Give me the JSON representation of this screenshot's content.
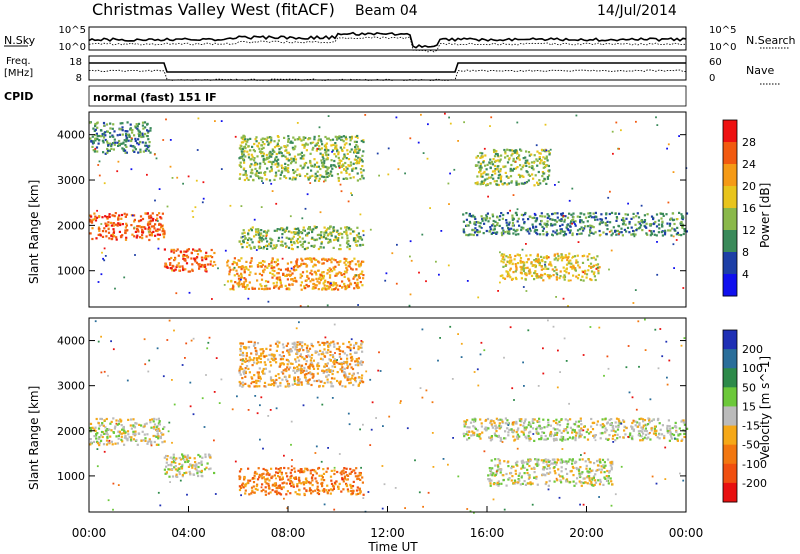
{
  "header": {
    "station": "Christmas Valley West (fitACF)",
    "beam": "Beam 04",
    "date": "14/Jul/2014"
  },
  "top_panels": {
    "nsky_label": "N.Sky",
    "nsearch_label": "N.Search",
    "nsky_ticks": [
      "10^5",
      "10^0"
    ],
    "nsearch_ticks": [
      "10^5",
      "10^0"
    ],
    "freq_label_1": "Freq.",
    "freq_label_2": "[MHz]",
    "freq_ticks": [
      "18",
      "8"
    ],
    "nave_label": "Nave",
    "nave_ticks": [
      "60",
      "0"
    ],
    "cpid_label": "CPID",
    "cpid_value": "normal (fast) 151 IF"
  },
  "chart_data": [
    {
      "type": "heatmap",
      "title": "",
      "ylabel": "Slant Range [km]",
      "xlabel": "",
      "ylim": [
        200,
        4500
      ],
      "yticks": [
        "4000",
        "3000",
        "2000",
        "1000"
      ],
      "colorbar": {
        "label": "Power [dB]",
        "ticks": [
          "28",
          "24",
          "20",
          "16",
          "12",
          "8",
          "4"
        ],
        "colors": [
          "#ee1111",
          "#f25a10",
          "#f59a16",
          "#e8c41c",
          "#8ab84a",
          "#3a8a5a",
          "#1d3fa6",
          "#1010ee"
        ]
      },
      "regions": [
        {
          "t0": 0.0,
          "t1": 3.0,
          "r0": 1700,
          "r1": 2300,
          "level": 24
        },
        {
          "t0": 0.0,
          "t1": 2.5,
          "r0": 3600,
          "r1": 4300,
          "level": 10
        },
        {
          "t0": 3.0,
          "t1": 5.0,
          "r0": 1000,
          "r1": 1500,
          "level": 26
        },
        {
          "t0": 5.5,
          "t1": 11.0,
          "r0": 600,
          "r1": 1300,
          "level": 20
        },
        {
          "t0": 6.0,
          "t1": 11.0,
          "r0": 1500,
          "r1": 2000,
          "level": 14
        },
        {
          "t0": 6.0,
          "t1": 11.0,
          "r0": 3000,
          "r1": 4000,
          "level": 12
        },
        {
          "t0": 15.5,
          "t1": 18.5,
          "r0": 2900,
          "r1": 3700,
          "level": 12
        },
        {
          "t0": 16.5,
          "t1": 20.5,
          "r0": 800,
          "r1": 1400,
          "level": 16
        },
        {
          "t0": 15.0,
          "t1": 24.0,
          "r0": 1800,
          "r1": 2300,
          "level": 8
        }
      ]
    },
    {
      "type": "heatmap",
      "title": "",
      "ylabel": "Slant Range [km]",
      "xlabel": "Time UT",
      "ylim": [
        200,
        4500
      ],
      "yticks": [
        "4000",
        "3000",
        "2000",
        "1000"
      ],
      "xticks": [
        "00:00",
        "04:00",
        "08:00",
        "12:00",
        "16:00",
        "20:00",
        "00:00"
      ],
      "colorbar": {
        "label": "Velocity [m s^-1]",
        "ticks": [
          "200",
          "100",
          "50",
          "15",
          "-15",
          "-50",
          "-100",
          "-200"
        ],
        "colors": [
          "#1f30b5",
          "#2a6e9a",
          "#2d8a4a",
          "#6cc83a",
          "#bbbbbb",
          "#f5a818",
          "#f27710",
          "#f04f10",
          "#e81010"
        ]
      },
      "regions": [
        {
          "t0": 0.0,
          "t1": 3.0,
          "r0": 1700,
          "r1": 2300,
          "velocity": 0
        },
        {
          "t0": 3.0,
          "t1": 5.0,
          "r0": 1000,
          "r1": 1500,
          "velocity": 0
        },
        {
          "t0": 6.0,
          "t1": 11.0,
          "r0": 600,
          "r1": 1200,
          "velocity": -60
        },
        {
          "t0": 6.0,
          "t1": 11.0,
          "r0": 3000,
          "r1": 4000,
          "velocity": -40
        },
        {
          "t0": 16.0,
          "t1": 21.0,
          "r0": 800,
          "r1": 1400,
          "velocity": 0
        },
        {
          "t0": 15.0,
          "t1": 24.0,
          "r0": 1800,
          "r1": 2300,
          "velocity": 0
        }
      ]
    }
  ]
}
